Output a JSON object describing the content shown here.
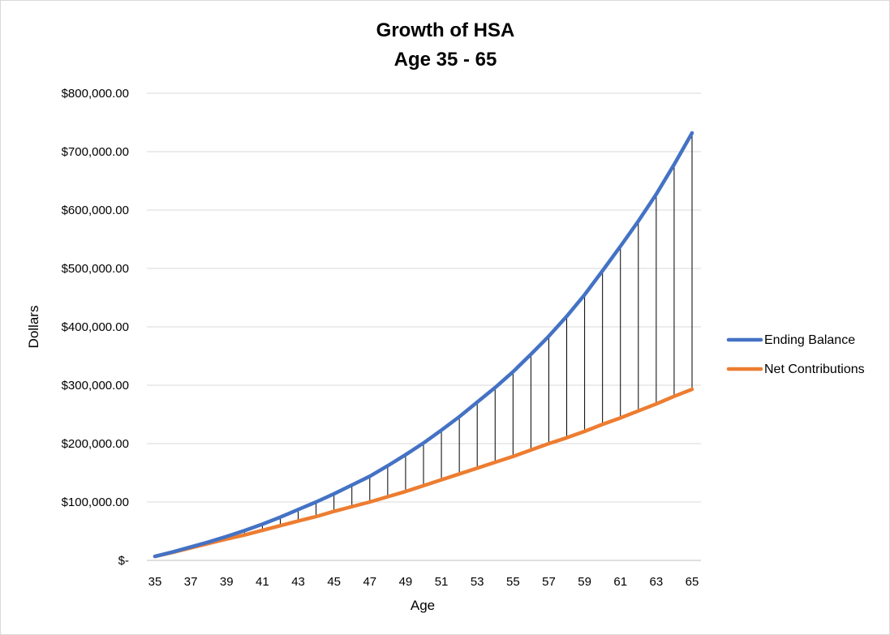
{
  "chart_data": {
    "type": "line",
    "title_line1": "Growth of HSA",
    "title_line2": "Age 35 - 65",
    "xlabel": "Age",
    "ylabel": "Dollars",
    "ylim": [
      0,
      800000
    ],
    "y_ticks": [
      0,
      100000,
      200000,
      300000,
      400000,
      500000,
      600000,
      700000,
      800000
    ],
    "y_tick_labels": [
      "$-",
      "$100,000.00",
      "$200,000.00",
      "$300,000.00",
      "$400,000.00",
      "$500,000.00",
      "$600,000.00",
      "$700,000.00",
      "$800,000.00"
    ],
    "x": [
      35,
      36,
      37,
      38,
      39,
      40,
      41,
      42,
      43,
      44,
      45,
      46,
      47,
      48,
      49,
      50,
      51,
      52,
      53,
      54,
      55,
      56,
      57,
      58,
      59,
      60,
      61,
      62,
      63,
      64,
      65
    ],
    "x_tick_labels": [
      "35",
      "37",
      "39",
      "41",
      "43",
      "45",
      "47",
      "49",
      "51",
      "53",
      "55",
      "57",
      "59",
      "61",
      "63",
      "65"
    ],
    "grid": true,
    "drop_lines": true,
    "legend_position": "right",
    "series": [
      {
        "name": "Ending Balance",
        "color": "#4472c4",
        "values": [
          6900,
          14500,
          23000,
          31500,
          41000,
          51000,
          62000,
          74000,
          87000,
          100000,
          114000,
          129000,
          144000,
          162000,
          181000,
          201000,
          223000,
          246000,
          271000,
          296000,
          323000,
          353000,
          384000,
          418000,
          455000,
          496000,
          538000,
          581000,
          627000,
          678000,
          732000
        ]
      },
      {
        "name": "Net Contributions",
        "color": "#ed7d31",
        "values": [
          6900,
          13800,
          21500,
          29000,
          36500,
          43500,
          51500,
          59500,
          67500,
          75000,
          84000,
          92000,
          100000,
          109000,
          118000,
          128000,
          138000,
          148000,
          158000,
          168000,
          178000,
          189000,
          200000,
          210000,
          221000,
          233000,
          244000,
          256000,
          268000,
          281000,
          293000
        ]
      }
    ]
  }
}
